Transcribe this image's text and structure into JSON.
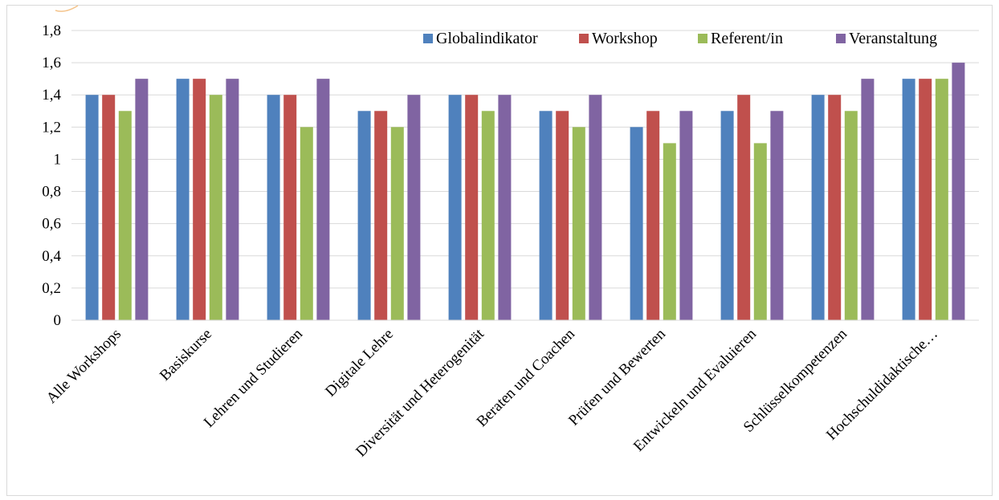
{
  "chart_data": {
    "type": "bar",
    "categories": [
      "Alle Workshops",
      "Basiskurse",
      "Lehren und Studieren",
      "Digitale Lehre",
      "Diversität und Heterogenität",
      "Beraten und Coachen",
      "Prüfen und Bewerten",
      "Entwickeln und Evaluieren",
      "Schlüsselkompetenzen",
      "Hochschuldidaktische…"
    ],
    "series": [
      {
        "name": "Globalindikator",
        "color": "#4f81bd",
        "values": [
          1.4,
          1.5,
          1.4,
          1.3,
          1.4,
          1.3,
          1.2,
          1.3,
          1.4,
          1.5
        ]
      },
      {
        "name": "Workshop",
        "color": "#c0504d",
        "values": [
          1.4,
          1.5,
          1.4,
          1.3,
          1.4,
          1.3,
          1.3,
          1.4,
          1.4,
          1.5
        ]
      },
      {
        "name": "Referent/in",
        "color": "#9bbb59",
        "values": [
          1.3,
          1.4,
          1.2,
          1.2,
          1.3,
          1.2,
          1.1,
          1.1,
          1.3,
          1.5
        ]
      },
      {
        "name": "Veranstaltung",
        "color": "#8064a2",
        "values": [
          1.5,
          1.5,
          1.5,
          1.4,
          1.4,
          1.4,
          1.3,
          1.3,
          1.5,
          1.6
        ]
      }
    ],
    "yticks": [
      "0",
      "0,2",
      "0,4",
      "0,6",
      "0,8",
      "1",
      "1,2",
      "1,4",
      "1,6",
      "1,8"
    ],
    "ylim": [
      0,
      1.8
    ],
    "grid": true,
    "legend_position": "top-right",
    "title": "",
    "xlabel": "",
    "ylabel": ""
  }
}
